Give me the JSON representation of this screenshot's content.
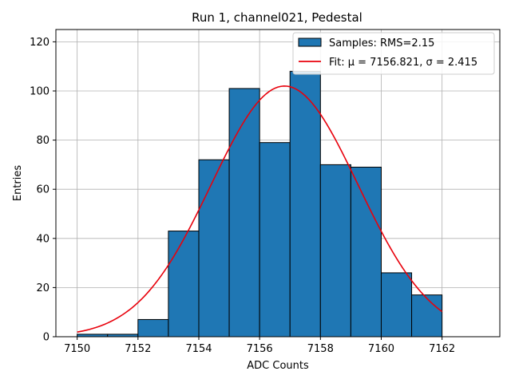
{
  "chart_data": {
    "type": "bar",
    "title": "Run 1, channel021, Pedestal",
    "xlabel": "ADC Counts",
    "ylabel": "Entries",
    "xlim": [
      7149.3,
      7163.9
    ],
    "ylim": [
      0,
      125
    ],
    "xticks": [
      7150,
      7152,
      7154,
      7156,
      7158,
      7160,
      7162
    ],
    "yticks": [
      0,
      20,
      40,
      60,
      80,
      100,
      120
    ],
    "grid": true,
    "legend_position": "top-right",
    "colors": {
      "bars": "#1f77b4",
      "bar_edge": "#000000",
      "fit": "#e8000b"
    },
    "bins": [
      {
        "x0": 7150,
        "x1": 7151,
        "count": 1
      },
      {
        "x0": 7151,
        "x1": 7152,
        "count": 1
      },
      {
        "x0": 7152,
        "x1": 7153,
        "count": 7
      },
      {
        "x0": 7153,
        "x1": 7154,
        "count": 43
      },
      {
        "x0": 7154,
        "x1": 7155,
        "count": 72
      },
      {
        "x0": 7155,
        "x1": 7156,
        "count": 101
      },
      {
        "x0": 7156,
        "x1": 7157,
        "count": 79
      },
      {
        "x0": 7157,
        "x1": 7158,
        "count": 108
      },
      {
        "x0": 7158,
        "x1": 7159,
        "count": 70
      },
      {
        "x0": 7159,
        "x1": 7160,
        "count": 69
      },
      {
        "x0": 7160,
        "x1": 7161,
        "count": 26
      },
      {
        "x0": 7161,
        "x1": 7162,
        "count": 17
      }
    ],
    "fit": {
      "mean": 7156.821,
      "sigma": 2.415,
      "amplitude": 102,
      "x_range": [
        7150,
        7162
      ]
    },
    "series": [
      {
        "name": "Samples: RMS=2.15",
        "type": "bar"
      },
      {
        "name": "Fit: μ = 7156.821, σ = 2.415",
        "type": "line"
      }
    ]
  }
}
